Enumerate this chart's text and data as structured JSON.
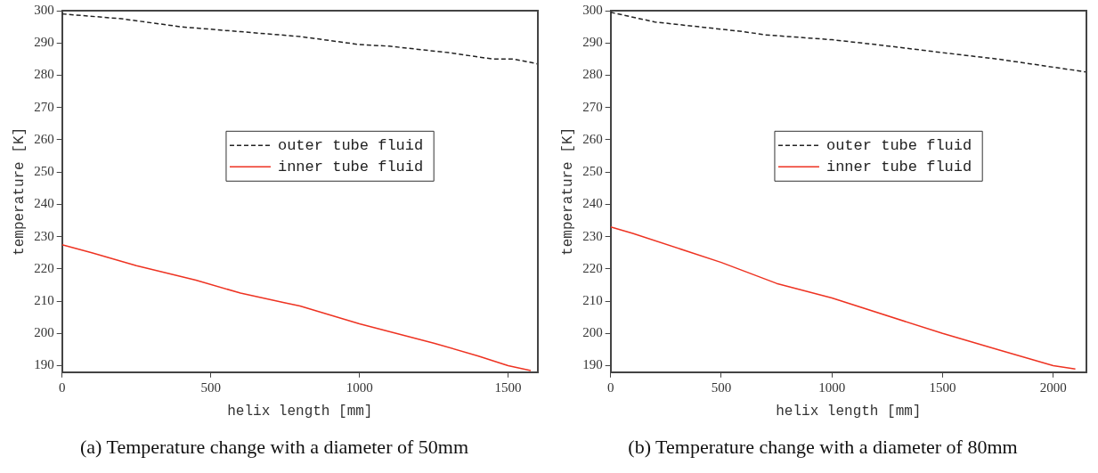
{
  "chart_data": [
    {
      "type": "line",
      "title": "(a) Temperature change with a diameter of 50mm",
      "xlabel": "helix length [mm]",
      "ylabel": "temperature [K]",
      "xlim": [
        0,
        1600
      ],
      "ylim": [
        188,
        300
      ],
      "xticks": [
        0,
        500,
        1000,
        1500
      ],
      "yticks": [
        190,
        200,
        210,
        220,
        230,
        240,
        250,
        260,
        270,
        280,
        290,
        300
      ],
      "legend": "center",
      "grid": false,
      "series": [
        {
          "name": "outer tube fluid",
          "color": "#222222",
          "line_style": "dashed",
          "x": [
            0,
            200,
            400,
            600,
            800,
            1000,
            1100,
            1300,
            1450,
            1520,
            1600
          ],
          "values": [
            299,
            297.5,
            295,
            293.5,
            292,
            289.5,
            289,
            287,
            285,
            285,
            283.5
          ]
        },
        {
          "name": "inner tube fluid",
          "color": "#ee3322",
          "line_style": "solid",
          "x": [
            0,
            100,
            250,
            450,
            600,
            750,
            800,
            1000,
            1250,
            1400,
            1500,
            1576
          ],
          "values": [
            227.5,
            225,
            221,
            216.5,
            212.5,
            209.5,
            208.5,
            203,
            197,
            193,
            190,
            188.5
          ]
        }
      ]
    },
    {
      "type": "line",
      "title": "(b) Temperature change with a diameter of 80mm",
      "xlabel": "helix length [mm]",
      "ylabel": "temperature [K]",
      "xlim": [
        0,
        2150
      ],
      "ylim": [
        188,
        300
      ],
      "xticks": [
        0,
        500,
        1000,
        1500,
        2000
      ],
      "yticks": [
        190,
        200,
        210,
        220,
        230,
        240,
        250,
        260,
        270,
        280,
        290,
        300
      ],
      "legend": "center",
      "grid": false,
      "series": [
        {
          "name": "outer tube fluid",
          "color": "#222222",
          "line_style": "dashed",
          "x": [
            0,
            200,
            400,
            600,
            700,
            1000,
            1200,
            1500,
            1750,
            2000,
            2150
          ],
          "values": [
            299.5,
            296.5,
            295,
            293.5,
            292.5,
            291,
            289.5,
            287,
            285,
            282.5,
            281
          ]
        },
        {
          "name": "inner tube fluid",
          "color": "#ee3322",
          "line_style": "solid",
          "x": [
            0,
            100,
            500,
            750,
            1000,
            1500,
            1750,
            2000,
            2100
          ],
          "values": [
            233,
            231,
            222,
            215.5,
            211,
            200,
            195,
            190,
            189
          ]
        }
      ]
    }
  ]
}
